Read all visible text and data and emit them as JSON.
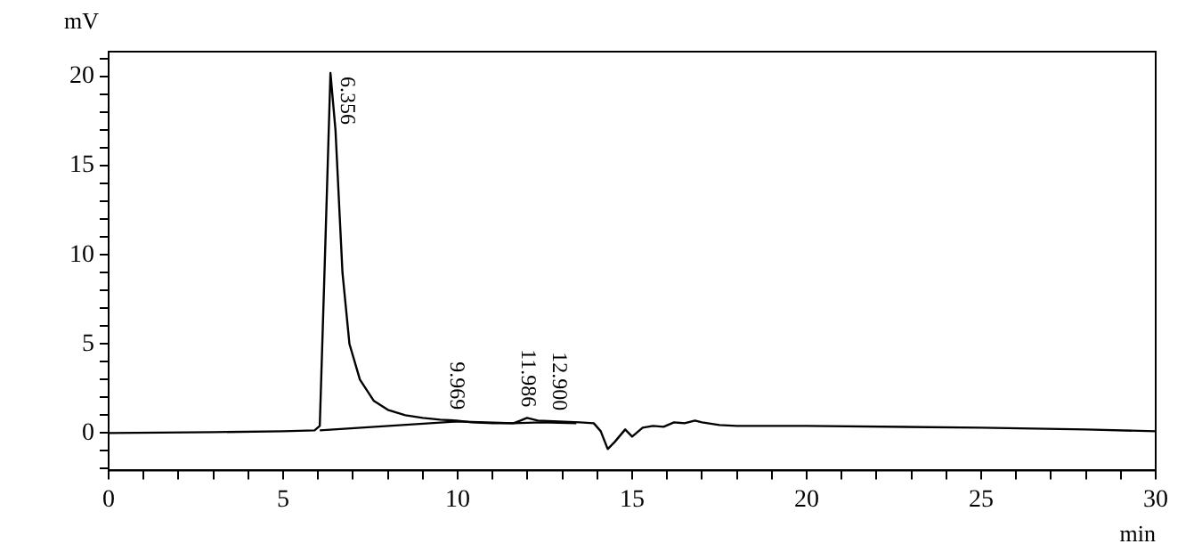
{
  "chart_data": {
    "type": "line",
    "xlabel": "min",
    "ylabel": "mV",
    "xlim": [
      0,
      30
    ],
    "ylim": [
      -2.1,
      21.4
    ],
    "xticks": [
      0,
      {
        "value": 1,
        "label": null
      },
      {
        "value": 2,
        "label": null
      },
      {
        "value": 3,
        "label": null
      },
      {
        "value": 4,
        "label": null
      },
      5,
      {
        "value": 6,
        "label": null
      },
      {
        "value": 7,
        "label": null
      },
      {
        "value": 8,
        "label": null
      },
      {
        "value": 9,
        "label": null
      },
      10,
      {
        "value": 11,
        "label": null
      },
      {
        "value": 12,
        "label": null
      },
      {
        "value": 13,
        "label": null
      },
      {
        "value": 14,
        "label": null
      },
      15,
      {
        "value": 16,
        "label": null
      },
      {
        "value": 17,
        "label": null
      },
      {
        "value": 18,
        "label": null
      },
      {
        "value": 19,
        "label": null
      },
      20,
      {
        "value": 21,
        "label": null
      },
      {
        "value": 22,
        "label": null
      },
      {
        "value": 23,
        "label": null
      },
      {
        "value": 24,
        "label": null
      },
      25,
      {
        "value": 26,
        "label": null
      },
      {
        "value": 27,
        "label": null
      },
      {
        "value": 28,
        "label": null
      },
      {
        "value": 29,
        "label": null
      },
      30
    ],
    "yticks": [
      {
        "value": -2,
        "label": null
      },
      {
        "value": -1,
        "label": null
      },
      0,
      {
        "value": 1,
        "label": null
      },
      {
        "value": 2,
        "label": null
      },
      {
        "value": 3,
        "label": null
      },
      {
        "value": 4,
        "label": null
      },
      5,
      {
        "value": 6,
        "label": null
      },
      {
        "value": 7,
        "label": null
      },
      {
        "value": 8,
        "label": null
      },
      {
        "value": 9,
        "label": null
      },
      10,
      {
        "value": 11,
        "label": null
      },
      {
        "value": 12,
        "label": null
      },
      {
        "value": 13,
        "label": null
      },
      {
        "value": 14,
        "label": null
      },
      15,
      {
        "value": 16,
        "label": null
      },
      {
        "value": 17,
        "label": null
      },
      {
        "value": 18,
        "label": null
      },
      {
        "value": 19,
        "label": null
      },
      20,
      {
        "value": 21,
        "label": null
      }
    ],
    "grid": false,
    "legend": false,
    "marker": "none",
    "line_style": "solid",
    "series": [
      {
        "color": "#000000",
        "x": [
          0,
          3,
          5,
          5.9,
          6.05,
          6.2,
          6.356,
          6.5,
          6.7,
          6.9,
          7.2,
          7.6,
          8,
          8.5,
          9,
          9.5,
          9.969,
          10.4,
          11,
          11.6,
          11.8,
          11.986,
          12.3,
          12.9,
          13.5,
          13.9,
          14.1,
          14.3,
          14.5,
          14.8,
          15,
          15.3,
          15.6,
          15.9,
          16.2,
          16.5,
          16.8,
          17,
          17.5,
          18,
          20,
          25,
          28,
          30
        ],
        "values": [
          0,
          0.05,
          0.1,
          0.15,
          0.4,
          10,
          20.2,
          17,
          9,
          5,
          3,
          1.8,
          1.3,
          1,
          0.85,
          0.75,
          0.7,
          0.6,
          0.55,
          0.55,
          0.7,
          0.85,
          0.7,
          0.65,
          0.6,
          0.55,
          0.1,
          -0.9,
          -0.5,
          0.2,
          -0.2,
          0.3,
          0.4,
          0.35,
          0.6,
          0.55,
          0.7,
          0.6,
          0.45,
          0.4,
          0.4,
          0.3,
          0.2,
          0.1
        ]
      },
      {
        "color": "#000000",
        "x": [
          6.05,
          10,
          11.6,
          12.4,
          13.4
        ],
        "values": [
          0.15,
          0.65,
          0.55,
          0.6,
          0.55
        ]
      }
    ],
    "annotations": [
      {
        "text": "6.356",
        "x": 6.356,
        "y": 20.2
      },
      {
        "text": "9.969",
        "x": 9.969,
        "y": 0.7
      },
      {
        "text": "11.986",
        "x": 11.986,
        "y": 0.85
      },
      {
        "text": "12.900",
        "x": 12.9,
        "y": 0.65
      }
    ]
  }
}
